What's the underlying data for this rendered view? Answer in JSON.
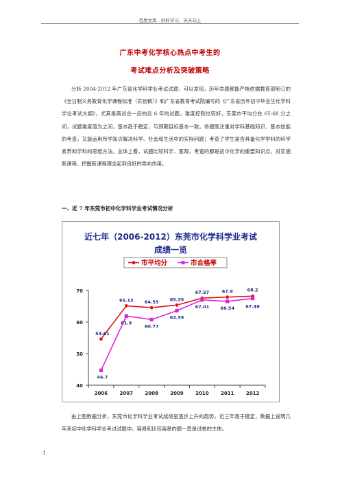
{
  "header": "百度文库 - 好好学习，天天向上",
  "title_line1": "广东中考化学核心热点中考生的",
  "title_line2": "考试难点分析及突破策略",
  "paragraph1": "分析 2004-2012 年广东省化学科学业考试试题，可以发现，历年命题都能严格依据教育部制订的《全日制义务教育化学课程标准（实验稿）》和广东省教育考试院编写的《广东省历年初中毕业生化学科学业考试大纲》，尤其是两试合一后的近 6 年的试题，难度控制也较好，东莞市平均分在 65-68 分之间，试题难度值为之间，基本趋于稳定，与预期目标基本一致。命题既注重对学科基础知识、基本技能的考查，又能运用所学知识解决科学、社会和生活中的实际问题；考查了学生是否具备化学学科的科学素养和学科的思维方法。总体上看，试题比较科学、客观，考查的都是初中化学的重要知识点，对实施新课程、把握新课程理念起到良好的导向作用。",
  "section_heading": "一、近 7 年东莞市初中化学科学业考试情况分析",
  "paragraph2": "由上图数据分析，东莞市化学科学业考试成绩呈逐步上升的趋势，近三年趋于稳定，数据上说明几年来初中化学科学业考试试题中，容易和比较容易的题一直是试卷的主体。",
  "footer": "-1",
  "chart_data": {
    "type": "line",
    "title_line1": "近七年（2006-2012）东莞市化学科学业考试",
    "title_line2": "成绩一览",
    "categories": [
      "2006",
      "2007",
      "2008",
      "2009",
      "2010",
      "2011",
      "2012"
    ],
    "ylim": [
      40,
      70
    ],
    "yticks": [
      40,
      50,
      60,
      70
    ],
    "legend_position": "top",
    "series": [
      {
        "name": "市平均分",
        "color": "#e01010",
        "marker": "circle",
        "values": [
          54.61,
          65.13,
          64.55,
          65.35,
          67.57,
          67.9,
          68.2
        ],
        "labels": [
          "54.61",
          "65.13",
          "64.55",
          "65.35",
          "67.57",
          "67.9",
          "68.2"
        ]
      },
      {
        "name": "市合格率",
        "color": "#e020e0",
        "marker": "square",
        "values": [
          44.7,
          61.9,
          60.77,
          63.59,
          67.01,
          66.54,
          67.48
        ],
        "labels": [
          "44.7",
          "61.9",
          "60.77",
          "63.59",
          "67.01",
          "66.54",
          "67.48"
        ]
      }
    ]
  }
}
